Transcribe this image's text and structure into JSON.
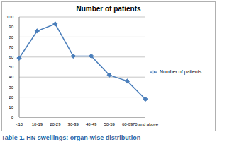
{
  "chart_data": {
    "type": "line",
    "title": "Number of patients",
    "categories": [
      "<10",
      "10-19",
      "20-29",
      "30-39",
      "40-49",
      "50-59",
      "60-69",
      "70 and above"
    ],
    "series": [
      {
        "name": "Number of patients",
        "color": "#4a7ebb",
        "marker": "diamond",
        "values": [
          59,
          86,
          93,
          61,
          61,
          42,
          36,
          18
        ]
      }
    ],
    "ylim": [
      0,
      100
    ],
    "yticks": [
      0,
      10,
      20,
      30,
      40,
      50,
      60,
      70,
      80,
      90,
      100
    ],
    "grid": true,
    "legend": "right"
  },
  "caption": "Table 1. HN swellings: organ-wise distribution"
}
